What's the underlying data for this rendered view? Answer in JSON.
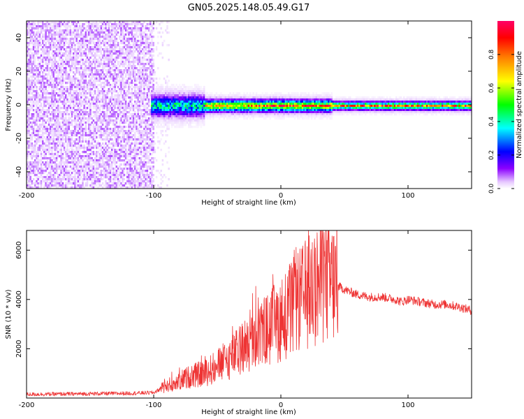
{
  "figure": {
    "title": "GN05.2025.148.05.49.G17"
  },
  "chart_data": [
    {
      "type": "heatmap",
      "xlabel": "Height of straight line (km)",
      "ylabel": "Frequency (Hz)",
      "xlim": [
        -200,
        150
      ],
      "ylim": [
        -50,
        50
      ],
      "x_ticks": [
        -200,
        -100,
        0,
        100
      ],
      "y_ticks": [
        -40,
        -20,
        0,
        20,
        40
      ],
      "colorbar": {
        "label": "Normalized spectral amplitude",
        "range": [
          0,
          1
        ],
        "ticks": [
          "0.0",
          "0.2",
          "0.4",
          "0.6",
          "0.8"
        ],
        "colors": [
          "#ffffff",
          "#e6c8ff",
          "#8b00ff",
          "#0000ff",
          "#00ffff",
          "#00ff00",
          "#ffff00",
          "#ff8000",
          "#ff0000",
          "#ff0066"
        ]
      },
      "features": {
        "noise_region_x": [
          -200,
          -100
        ],
        "signal_band_center_hz": 0,
        "signal_start_x": -103
      }
    },
    {
      "type": "line",
      "xlabel": "Height of straight line (km)",
      "ylabel": "SNR (10 * v/v)",
      "xlim": [
        -200,
        150
      ],
      "ylim": [
        0,
        6800
      ],
      "x_ticks": [
        -200,
        -100,
        0,
        100
      ],
      "y_ticks": [
        2000,
        4000,
        6000
      ],
      "series": [
        {
          "color": "#ee3333",
          "x": [
            -200,
            -180,
            -160,
            -140,
            -120,
            -100,
            -90,
            -80,
            -70,
            -60,
            -50,
            -40,
            -30,
            -20,
            -10,
            0,
            10,
            20,
            30,
            40,
            50,
            60,
            70,
            80,
            90,
            95,
            100,
            110,
            120,
            130,
            140,
            150
          ],
          "y": [
            150,
            160,
            170,
            180,
            190,
            220,
            500,
            700,
            900,
            1000,
            1300,
            1600,
            2000,
            2400,
            2800,
            3200,
            3700,
            4200,
            4700,
            4700,
            4400,
            4200,
            4100,
            4100,
            4000,
            3900,
            4000,
            3900,
            3800,
            3800,
            3700,
            3550
          ]
        }
      ]
    }
  ]
}
